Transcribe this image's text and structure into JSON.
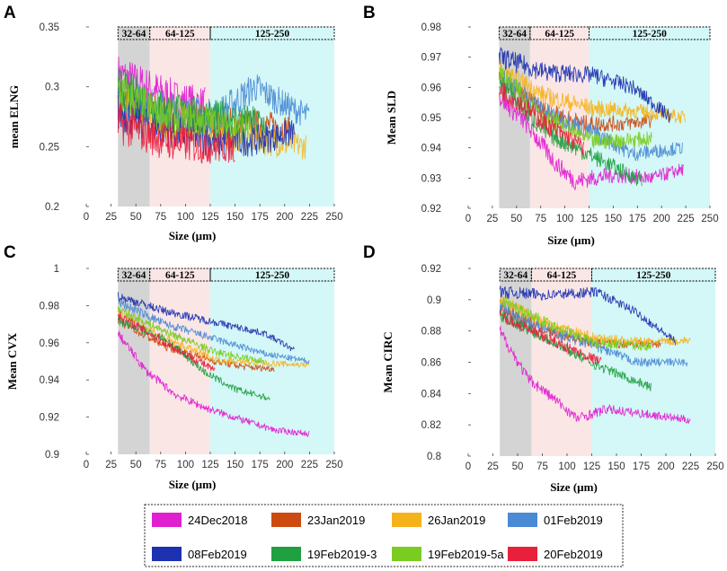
{
  "chart_data": [
    {
      "type": "line",
      "panel": "A",
      "xlabel": "Size (µm)",
      "ylabel": "mean ELNG",
      "xlim": [
        0,
        250
      ],
      "ylim": [
        0.2,
        0.35
      ],
      "xticks": [
        0,
        25,
        50,
        75,
        100,
        125,
        150,
        175,
        200,
        225,
        250
      ],
      "yticks": [
        0.2,
        0.25,
        0.3,
        0.35
      ],
      "ytick_labels": [
        "0.2",
        "0.25",
        "0.3",
        "0.35"
      ],
      "bands": [
        {
          "label": "32-64",
          "from": 32,
          "to": 64,
          "color": "#d4d4d4"
        },
        {
          "label": "64-125",
          "from": 64,
          "to": 125,
          "color": "#fbe6e6"
        },
        {
          "label": "125-250",
          "from": 125,
          "to": 250,
          "color": "#d4f7f7"
        }
      ],
      "noise": 0.018,
      "series": [
        {
          "name": "24Dec2018",
          "end": 120,
          "points": [
            [
              32,
              0.31
            ],
            [
              60,
              0.3
            ],
            [
              90,
              0.29
            ],
            [
              120,
              0.285
            ]
          ]
        },
        {
          "name": "23Jan2019",
          "end": 205,
          "points": [
            [
              32,
              0.29
            ],
            [
              80,
              0.275
            ],
            [
              130,
              0.27
            ],
            [
              180,
              0.268
            ],
            [
              205,
              0.265
            ]
          ]
        },
        {
          "name": "26Jan2019",
          "end": 222,
          "points": [
            [
              32,
              0.29
            ],
            [
              80,
              0.27
            ],
            [
              130,
              0.262
            ],
            [
              180,
              0.255
            ],
            [
              222,
              0.25
            ]
          ]
        },
        {
          "name": "01Feb2019",
          "end": 225,
          "points": [
            [
              32,
              0.29
            ],
            [
              80,
              0.28
            ],
            [
              130,
              0.275
            ],
            [
              170,
              0.3
            ],
            [
              200,
              0.285
            ],
            [
              225,
              0.275
            ]
          ]
        },
        {
          "name": "08Feb2019",
          "end": 210,
          "points": [
            [
              32,
              0.28
            ],
            [
              80,
              0.265
            ],
            [
              130,
              0.255
            ],
            [
              170,
              0.255
            ],
            [
              210,
              0.262
            ]
          ]
        },
        {
          "name": "19Feb2019-3",
          "end": 180,
          "points": [
            [
              32,
              0.3
            ],
            [
              80,
              0.28
            ],
            [
              130,
              0.275
            ],
            [
              180,
              0.27
            ]
          ]
        },
        {
          "name": "19Feb2019-5a",
          "end": 165,
          "points": [
            [
              32,
              0.295
            ],
            [
              80,
              0.275
            ],
            [
              130,
              0.27
            ],
            [
              165,
              0.265
            ]
          ]
        },
        {
          "name": "20Feb2019",
          "end": 150,
          "points": [
            [
              32,
              0.27
            ],
            [
              80,
              0.255
            ],
            [
              120,
              0.25
            ],
            [
              150,
              0.25
            ]
          ]
        }
      ]
    },
    {
      "type": "line",
      "panel": "B",
      "xlabel": "Size (µm)",
      "ylabel": "Mean SLD",
      "xlim": [
        0,
        250
      ],
      "ylim": [
        0.92,
        0.98
      ],
      "xticks": [
        0,
        25,
        50,
        75,
        100,
        125,
        150,
        175,
        200,
        225,
        250
      ],
      "yticks": [
        0.92,
        0.93,
        0.94,
        0.95,
        0.96,
        0.97,
        0.98
      ],
      "ytick_labels": [
        "0.92",
        "0.93",
        "0.94",
        "0.95",
        "0.96",
        "0.97",
        "0.98"
      ],
      "bands": [
        {
          "label": "32-64",
          "from": 32,
          "to": 64,
          "color": "#d4d4d4"
        },
        {
          "label": "64-125",
          "from": 64,
          "to": 125,
          "color": "#fbe6e6"
        },
        {
          "label": "125-250",
          "from": 125,
          "to": 250,
          "color": "#d4f7f7"
        }
      ],
      "noise": 0.0035,
      "series": [
        {
          "name": "24Dec2018",
          "end": 223,
          "points": [
            [
              32,
              0.957
            ],
            [
              60,
              0.948
            ],
            [
              90,
              0.935
            ],
            [
              110,
              0.929
            ],
            [
              150,
              0.931
            ],
            [
              190,
              0.93
            ],
            [
              223,
              0.933
            ]
          ]
        },
        {
          "name": "23Jan2019",
          "end": 190,
          "points": [
            [
              32,
              0.962
            ],
            [
              80,
              0.952
            ],
            [
              120,
              0.948
            ],
            [
              160,
              0.948
            ],
            [
              190,
              0.949
            ]
          ]
        },
        {
          "name": "26Jan2019",
          "end": 225,
          "points": [
            [
              32,
              0.966
            ],
            [
              80,
              0.957
            ],
            [
              130,
              0.953
            ],
            [
              180,
              0.952
            ],
            [
              225,
              0.95
            ]
          ]
        },
        {
          "name": "01Feb2019",
          "end": 222,
          "points": [
            [
              32,
              0.964
            ],
            [
              80,
              0.952
            ],
            [
              130,
              0.945
            ],
            [
              170,
              0.938
            ],
            [
              222,
              0.94
            ]
          ]
        },
        {
          "name": "08Feb2019",
          "end": 210,
          "points": [
            [
              32,
              0.97
            ],
            [
              80,
              0.965
            ],
            [
              130,
              0.964
            ],
            [
              170,
              0.96
            ],
            [
              210,
              0.95
            ]
          ]
        },
        {
          "name": "19Feb2019-3",
          "end": 180,
          "points": [
            [
              32,
              0.962
            ],
            [
              80,
              0.945
            ],
            [
              130,
              0.937
            ],
            [
              180,
              0.929
            ]
          ]
        },
        {
          "name": "19Feb2019-5a",
          "end": 190,
          "points": [
            [
              32,
              0.965
            ],
            [
              80,
              0.95
            ],
            [
              130,
              0.942
            ],
            [
              190,
              0.943
            ]
          ]
        },
        {
          "name": "20Feb2019",
          "end": 120,
          "points": [
            [
              32,
              0.96
            ],
            [
              80,
              0.948
            ],
            [
              120,
              0.94
            ]
          ]
        }
      ]
    },
    {
      "type": "line",
      "panel": "C",
      "xlabel": "Size (µm)",
      "ylabel": "Mean CVX",
      "xlim": [
        0,
        250
      ],
      "ylim": [
        0.9,
        1.0
      ],
      "xticks": [
        0,
        25,
        50,
        75,
        100,
        125,
        150,
        175,
        200,
        225,
        250
      ],
      "yticks": [
        0.9,
        0.92,
        0.94,
        0.96,
        0.98,
        1.0
      ],
      "ytick_labels": [
        "0.9",
        "0.92",
        "0.94",
        "0.96",
        "0.98",
        "1"
      ],
      "bands": [
        {
          "label": "32-64",
          "from": 32,
          "to": 64,
          "color": "#d4d4d4"
        },
        {
          "label": "64-125",
          "from": 64,
          "to": 125,
          "color": "#fbe6e6"
        },
        {
          "label": "125-250",
          "from": 125,
          "to": 250,
          "color": "#d4f7f7"
        }
      ],
      "noise": 0.0025,
      "series": [
        {
          "name": "24Dec2018",
          "end": 225,
          "points": [
            [
              32,
              0.965
            ],
            [
              60,
              0.945
            ],
            [
              90,
              0.932
            ],
            [
              120,
              0.925
            ],
            [
              160,
              0.918
            ],
            [
              190,
              0.913
            ],
            [
              225,
              0.911
            ]
          ]
        },
        {
          "name": "23Jan2019",
          "end": 190,
          "points": [
            [
              32,
              0.972
            ],
            [
              80,
              0.958
            ],
            [
              130,
              0.95
            ],
            [
              160,
              0.947
            ],
            [
              190,
              0.946
            ]
          ]
        },
        {
          "name": "26Jan2019",
          "end": 225,
          "points": [
            [
              32,
              0.977
            ],
            [
              80,
              0.962
            ],
            [
              130,
              0.951
            ],
            [
              180,
              0.949
            ],
            [
              225,
              0.948
            ]
          ]
        },
        {
          "name": "01Feb2019",
          "end": 225,
          "points": [
            [
              32,
              0.982
            ],
            [
              80,
              0.97
            ],
            [
              130,
              0.962
            ],
            [
              180,
              0.954
            ],
            [
              225,
              0.95
            ]
          ]
        },
        {
          "name": "08Feb2019",
          "end": 210,
          "points": [
            [
              32,
              0.985
            ],
            [
              80,
              0.977
            ],
            [
              130,
              0.971
            ],
            [
              180,
              0.965
            ],
            [
              210,
              0.956
            ]
          ]
        },
        {
          "name": "19Feb2019-3",
          "end": 185,
          "points": [
            [
              32,
              0.972
            ],
            [
              80,
              0.962
            ],
            [
              120,
              0.944
            ],
            [
              150,
              0.935
            ],
            [
              185,
              0.93
            ]
          ]
        },
        {
          "name": "19Feb2019-5a",
          "end": 180,
          "points": [
            [
              32,
              0.978
            ],
            [
              80,
              0.966
            ],
            [
              130,
              0.955
            ],
            [
              180,
              0.95
            ]
          ]
        },
        {
          "name": "20Feb2019",
          "end": 130,
          "points": [
            [
              32,
              0.975
            ],
            [
              80,
              0.96
            ],
            [
              130,
              0.945
            ]
          ]
        }
      ]
    },
    {
      "type": "line",
      "panel": "D",
      "xlabel": "Size (µm)",
      "ylabel": "Mean CIRC",
      "xlim": [
        0,
        250
      ],
      "ylim": [
        0.8,
        0.92
      ],
      "xticks": [
        0,
        25,
        50,
        75,
        100,
        125,
        150,
        175,
        200,
        225,
        250
      ],
      "yticks": [
        0.8,
        0.82,
        0.84,
        0.86,
        0.88,
        0.9,
        0.92
      ],
      "ytick_labels": [
        "0.8",
        "0.82",
        "0.84",
        "0.86",
        "0.88",
        "0.9",
        "0.92"
      ],
      "bands": [
        {
          "label": "32-64",
          "from": 32,
          "to": 64,
          "color": "#d4d4d4"
        },
        {
          "label": "64-125",
          "from": 64,
          "to": 125,
          "color": "#fbe6e6"
        },
        {
          "label": "125-250",
          "from": 125,
          "to": 250,
          "color": "#d4f7f7"
        }
      ],
      "noise": 0.004,
      "series": [
        {
          "name": "24Dec2018",
          "end": 225,
          "points": [
            [
              32,
              0.88
            ],
            [
              60,
              0.85
            ],
            [
              90,
              0.835
            ],
            [
              110,
              0.824
            ],
            [
              140,
              0.83
            ],
            [
              190,
              0.826
            ],
            [
              225,
              0.823
            ]
          ]
        },
        {
          "name": "23Jan2019",
          "end": 195,
          "points": [
            [
              32,
              0.895
            ],
            [
              80,
              0.88
            ],
            [
              130,
              0.872
            ],
            [
              195,
              0.872
            ]
          ]
        },
        {
          "name": "26Jan2019",
          "end": 225,
          "points": [
            [
              32,
              0.9
            ],
            [
              80,
              0.885
            ],
            [
              130,
              0.875
            ],
            [
              180,
              0.873
            ],
            [
              225,
              0.874
            ]
          ]
        },
        {
          "name": "01Feb2019",
          "end": 222,
          "points": [
            [
              32,
              0.895
            ],
            [
              80,
              0.88
            ],
            [
              130,
              0.87
            ],
            [
              170,
              0.86
            ],
            [
              222,
              0.86
            ]
          ]
        },
        {
          "name": "08Feb2019",
          "end": 210,
          "points": [
            [
              32,
              0.905
            ],
            [
              80,
              0.903
            ],
            [
              130,
              0.905
            ],
            [
              170,
              0.892
            ],
            [
              210,
              0.873
            ]
          ]
        },
        {
          "name": "19Feb2019-3",
          "end": 185,
          "points": [
            [
              32,
              0.89
            ],
            [
              80,
              0.875
            ],
            [
              130,
              0.858
            ],
            [
              185,
              0.844
            ]
          ]
        },
        {
          "name": "19Feb2019-5a",
          "end": 185,
          "points": [
            [
              32,
              0.9
            ],
            [
              80,
              0.885
            ],
            [
              130,
              0.872
            ],
            [
              185,
              0.87
            ]
          ]
        },
        {
          "name": "20Feb2019",
          "end": 135,
          "points": [
            [
              32,
              0.89
            ],
            [
              80,
              0.875
            ],
            [
              135,
              0.86
            ]
          ]
        }
      ]
    }
  ],
  "legend": {
    "items": [
      {
        "label": "24Dec2018",
        "color": "#e020d0"
      },
      {
        "label": "23Jan2019",
        "color": "#cc4a10"
      },
      {
        "label": "26Jan2019",
        "color": "#f5b31a"
      },
      {
        "label": "01Feb2019",
        "color": "#4a8ad4"
      },
      {
        "label": "08Feb2019",
        "color": "#1c32b0"
      },
      {
        "label": "19Feb2019-3",
        "color": "#20a040"
      },
      {
        "label": "19Feb2019-5a",
        "color": "#7acc20"
      },
      {
        "label": "20Feb2019",
        "color": "#e8203c"
      }
    ]
  }
}
